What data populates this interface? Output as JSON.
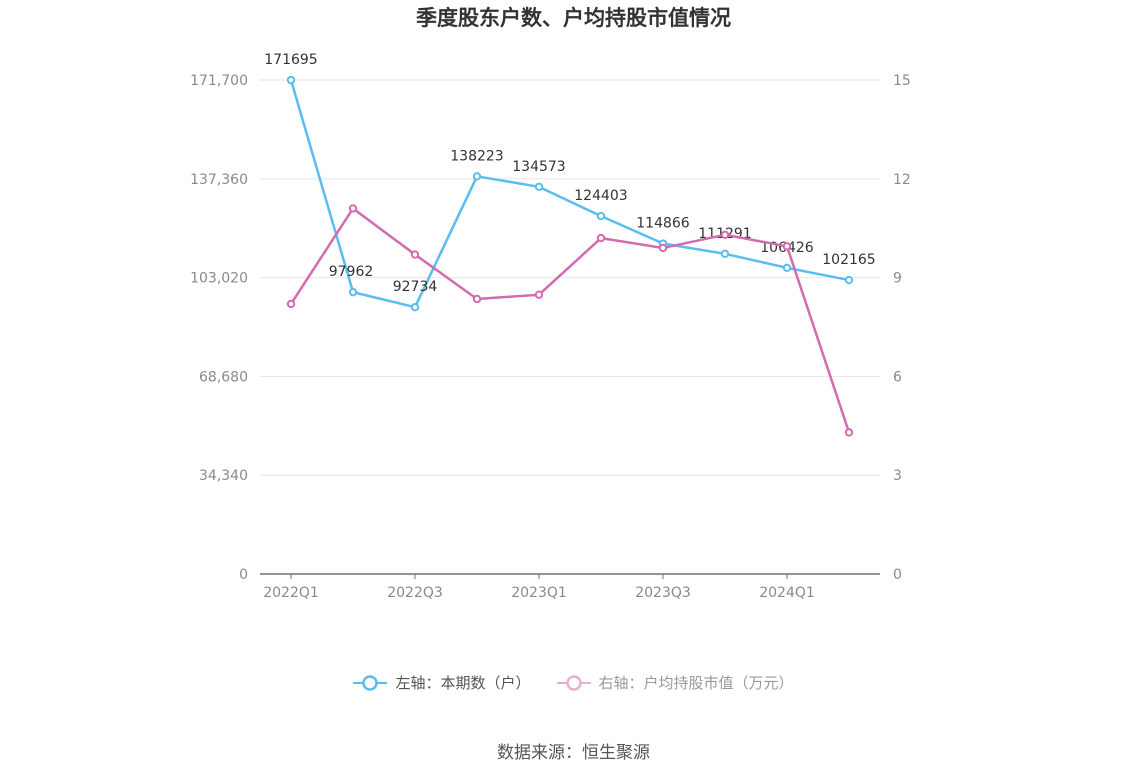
{
  "chart_data": {
    "type": "line",
    "title": "季度股东户数、户均持股市值情况",
    "categories": [
      "2022Q1",
      "2022Q2",
      "2022Q3",
      "2022Q4",
      "2023Q1",
      "2023Q2",
      "2023Q3",
      "2023Q4",
      "2024Q1",
      "2024Q2"
    ],
    "x_tick_labels": [
      "2022Q1",
      "2022Q3",
      "2023Q1",
      "2023Q3",
      "2024Q1"
    ],
    "left_axis": {
      "ylim": [
        0,
        171700
      ],
      "ticks": [
        "0",
        "34,340",
        "68,680",
        "103,020",
        "137,360",
        "171,700"
      ]
    },
    "right_axis": {
      "ylim": [
        0,
        15
      ],
      "ticks": [
        "0",
        "3",
        "6",
        "9",
        "12",
        "15"
      ]
    },
    "series": [
      {
        "name": "左轴：本期数（户）",
        "axis": "left",
        "color": "#5bbcf0",
        "values": [
          171695,
          97962,
          92734,
          138223,
          134573,
          124403,
          114866,
          111291,
          106426,
          102165
        ],
        "labels": [
          "171695",
          "97962",
          "92734",
          "138223",
          "134573",
          "124403",
          "114866",
          "111291",
          "106426",
          "102165"
        ]
      },
      {
        "name": "右轴：户均持股市值（万元）",
        "axis": "right",
        "color": "#d36bb0",
        "values": [
          8.2,
          11.1,
          9.7,
          8.35,
          8.48,
          10.2,
          9.9,
          10.3,
          9.95,
          4.3
        ]
      }
    ],
    "legend_position": "bottom",
    "grid": true
  },
  "legend": [
    {
      "label": "左轴：本期数（户）",
      "color": "#5bbcf0",
      "active": true
    },
    {
      "label": "右轴：户均持股市值（万元）",
      "color": "#e6b0d6",
      "active": false
    }
  ],
  "source": "数据来源：恒生聚源"
}
